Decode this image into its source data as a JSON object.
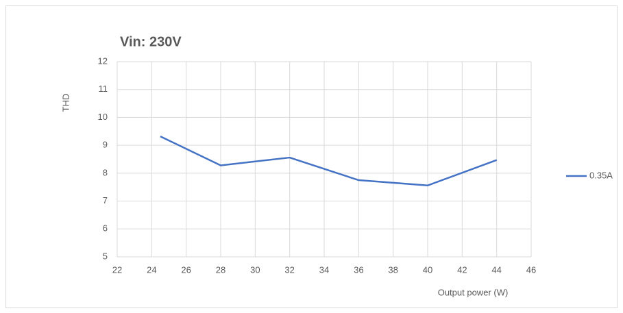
{
  "chart_data": {
    "type": "line",
    "title": "Vin: 230V",
    "x_label": "Output power (W)",
    "y_label": "THD",
    "x": [
      24.5,
      28,
      32,
      36,
      40,
      44
    ],
    "series": [
      {
        "name": "0.35A",
        "color": "#4472c4",
        "values": [
          9.32,
          8.28,
          8.56,
          7.75,
          7.56,
          8.47
        ]
      }
    ],
    "xlim": [
      22,
      46
    ],
    "xticks": [
      22,
      24,
      26,
      28,
      30,
      32,
      34,
      36,
      38,
      40,
      42,
      44,
      46
    ],
    "ylim": [
      5,
      12
    ],
    "yticks": [
      5,
      6,
      7,
      8,
      9,
      10,
      11,
      12
    ],
    "grid": true,
    "legend": "right"
  }
}
